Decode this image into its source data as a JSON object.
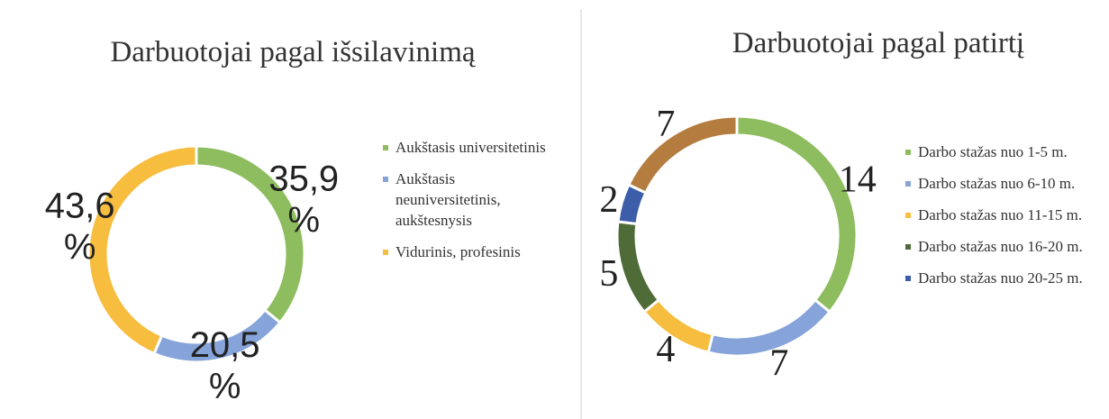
{
  "chart_data": [
    {
      "type": "donut",
      "title": "Darbuotojai pagal išsilavinimą",
      "categories": [
        "Aukštasis universitetinis",
        "Aukštasis neuniversitetinis, aukštesnysis",
        "Vidurinis, profesinis"
      ],
      "values": [
        35.9,
        20.5,
        43.6
      ],
      "value_labels": [
        "35,9 %",
        "20,5 %",
        "43,6 %"
      ],
      "colors": [
        "#8dbd5e",
        "#86a3da",
        "#f7bd3f"
      ]
    },
    {
      "type": "donut",
      "title": "Darbuotojai pagal patirtį",
      "categories": [
        "Darbo stažas nuo 1-5 m.",
        "Darbo stažas nuo 6-10 m.",
        "Darbo stažas nuo 11-15 m.",
        "Darbo stažas nuo 16-20 m.",
        "Darbo stažas nuo 20-25 m.",
        null
      ],
      "values": [
        14,
        7,
        4,
        5,
        2,
        7
      ],
      "colors": [
        "#8dbd5e",
        "#86a3da",
        "#f7bd3f",
        "#4f6b38",
        "#3c5ea8",
        "#b47c3e"
      ]
    }
  ]
}
